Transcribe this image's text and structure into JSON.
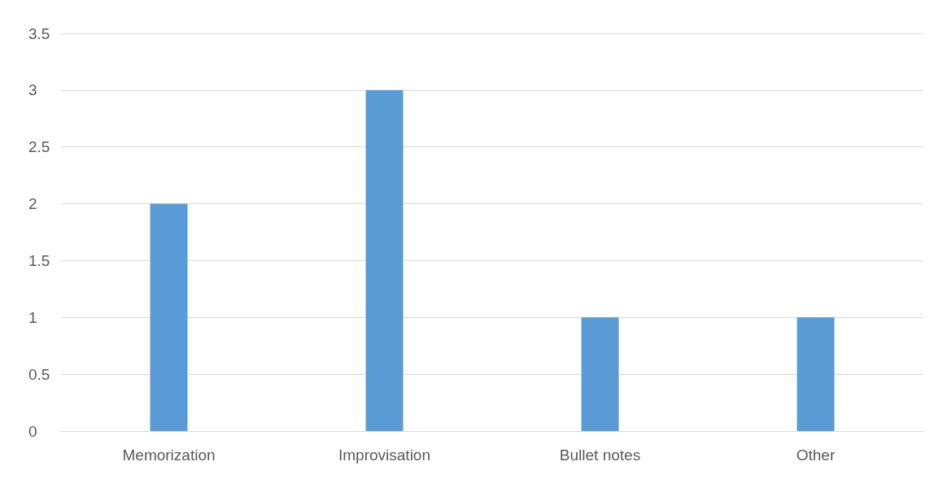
{
  "chart_data": {
    "type": "bar",
    "categories": [
      "Memorization",
      "Improvisation",
      "Bullet notes",
      "Other"
    ],
    "values": [
      2,
      3,
      1,
      1
    ],
    "color": "#5b9bd5",
    "ylim": [
      0,
      3.5
    ],
    "yticks": [
      0,
      0.5,
      1,
      1.5,
      2,
      2.5,
      3,
      3.5
    ],
    "grid": "y"
  }
}
